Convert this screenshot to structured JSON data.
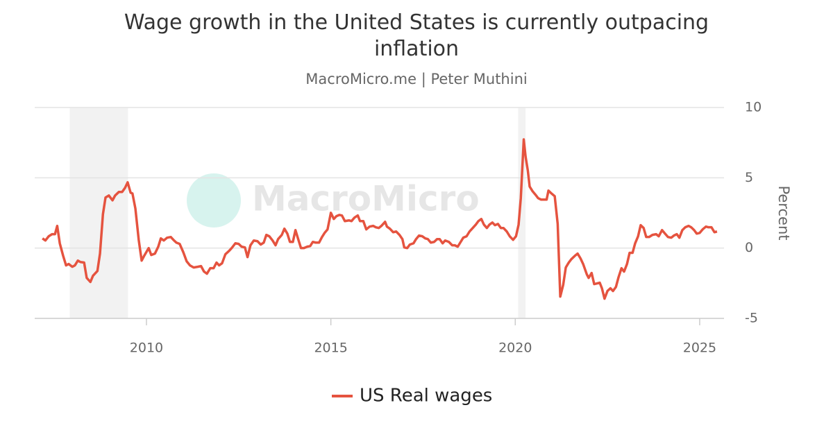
{
  "chart_data": {
    "type": "line",
    "title": "Wage growth in the United States is currently outpacing inflation",
    "subtitle": "MacroMicro.me | Peter Muthini",
    "watermark": "MacroMicro",
    "y_label": "Percent",
    "xlim": [
      2006.97,
      2025.66
    ],
    "xticks": [
      2010,
      2015,
      2020,
      2025
    ],
    "ylim": [
      -5,
      10
    ],
    "yticks": [
      -5,
      0,
      5,
      10
    ],
    "grid": true,
    "recessions": [
      [
        2007.92,
        2009.5
      ],
      [
        2020.08,
        2020.28
      ]
    ],
    "x": [
      2007.18,
      2007.26,
      2007.35,
      2007.44,
      2007.52,
      2007.58,
      2007.65,
      2007.74,
      2007.82,
      2007.89,
      2007.99,
      2008.06,
      2008.14,
      2008.21,
      2008.31,
      2008.38,
      2008.48,
      2008.55,
      2008.67,
      2008.74,
      2008.82,
      2008.89,
      2008.98,
      2009.08,
      2009.15,
      2009.25,
      2009.34,
      2009.42,
      2009.49,
      2009.57,
      2009.62,
      2009.7,
      2009.79,
      2009.87,
      2009.94,
      2010.06,
      2010.13,
      2010.23,
      2010.32,
      2010.39,
      2010.47,
      2010.56,
      2010.66,
      2010.73,
      2010.81,
      2010.9,
      2011.0,
      2011.09,
      2011.18,
      2011.28,
      2011.39,
      2011.48,
      2011.56,
      2011.64,
      2011.73,
      2011.82,
      2011.9,
      2011.97,
      2012.05,
      2012.14,
      2012.24,
      2012.31,
      2012.41,
      2012.5,
      2012.58,
      2012.67,
      2012.74,
      2012.82,
      2012.91,
      2013.01,
      2013.1,
      2013.18,
      2013.25,
      2013.33,
      2013.42,
      2013.5,
      2013.57,
      2013.67,
      2013.74,
      2013.82,
      2013.89,
      2013.97,
      2014.04,
      2014.12,
      2014.19,
      2014.27,
      2014.36,
      2014.44,
      2014.51,
      2014.59,
      2014.68,
      2014.76,
      2014.83,
      2014.91,
      2015.0,
      2015.08,
      2015.15,
      2015.23,
      2015.3,
      2015.38,
      2015.49,
      2015.56,
      2015.64,
      2015.73,
      2015.79,
      2015.88,
      2015.96,
      2016.05,
      2016.15,
      2016.22,
      2016.3,
      2016.37,
      2016.47,
      2016.52,
      2016.6,
      2016.69,
      2016.77,
      2016.86,
      2016.94,
      2016.99,
      2017.07,
      2017.14,
      2017.24,
      2017.31,
      2017.39,
      2017.48,
      2017.56,
      2017.63,
      2017.71,
      2017.8,
      2017.88,
      2017.95,
      2018.03,
      2018.1,
      2018.2,
      2018.29,
      2018.36,
      2018.44,
      2018.52,
      2018.59,
      2018.68,
      2018.76,
      2018.83,
      2018.93,
      2019.0,
      2019.08,
      2019.15,
      2019.23,
      2019.3,
      2019.38,
      2019.45,
      2019.53,
      2019.61,
      2019.68,
      2019.77,
      2019.85,
      2019.94,
      2020.02,
      2020.09,
      2020.15,
      2020.23,
      2020.28,
      2020.34,
      2020.39,
      2020.47,
      2020.55,
      2020.62,
      2020.7,
      2020.77,
      2020.85,
      2020.9,
      2020.98,
      2021.07,
      2021.15,
      2021.22,
      2021.3,
      2021.37,
      2021.45,
      2021.52,
      2021.62,
      2021.69,
      2021.77,
      2021.84,
      2021.94,
      2021.99,
      2022.07,
      2022.14,
      2022.22,
      2022.29,
      2022.35,
      2022.42,
      2022.5,
      2022.58,
      2022.65,
      2022.73,
      2022.8,
      2022.88,
      2022.95,
      2023.03,
      2023.1,
      2023.18,
      2023.25,
      2023.33,
      2023.4,
      2023.48,
      2023.55,
      2023.63,
      2023.72,
      2023.82,
      2023.89,
      2023.98,
      2024.06,
      2024.14,
      2024.23,
      2024.3,
      2024.38,
      2024.45,
      2024.53,
      2024.61,
      2024.7,
      2024.77,
      2024.85,
      2024.92,
      2025.0,
      2025.08,
      2025.17,
      2025.24,
      2025.32,
      2025.4,
      2025.47
    ],
    "series": [
      {
        "name": "US Real wages",
        "color": "#e5533f",
        "values": [
          0.69,
          0.54,
          0.84,
          0.99,
          0.99,
          1.58,
          0.34,
          -0.54,
          -1.23,
          -1.13,
          -1.33,
          -1.23,
          -0.89,
          -0.99,
          -1.03,
          -2.12,
          -2.41,
          -1.97,
          -1.63,
          -0.39,
          2.41,
          3.6,
          3.74,
          3.4,
          3.74,
          3.99,
          3.99,
          4.29,
          4.68,
          3.94,
          3.89,
          2.81,
          0.59,
          -0.89,
          -0.54,
          0,
          -0.49,
          -0.39,
          0.1,
          0.69,
          0.54,
          0.74,
          0.79,
          0.59,
          0.39,
          0.3,
          -0.3,
          -0.94,
          -1.23,
          -1.38,
          -1.33,
          -1.28,
          -1.67,
          -1.82,
          -1.43,
          -1.43,
          -1.03,
          -1.23,
          -1.08,
          -0.44,
          -0.2,
          0,
          0.34,
          0.3,
          0.1,
          0.05,
          -0.64,
          0.2,
          0.54,
          0.49,
          0.25,
          0.39,
          0.94,
          0.84,
          0.54,
          0.2,
          0.64,
          0.94,
          1.38,
          1.03,
          0.44,
          0.44,
          1.28,
          0.59,
          0,
          0,
          0.1,
          0.15,
          0.44,
          0.39,
          0.39,
          0.79,
          1.08,
          1.33,
          2.51,
          2.07,
          2.27,
          2.36,
          2.32,
          1.92,
          1.97,
          1.92,
          2.17,
          2.32,
          1.92,
          1.92,
          1.33,
          1.53,
          1.58,
          1.48,
          1.43,
          1.58,
          1.87,
          1.53,
          1.38,
          1.13,
          1.18,
          0.94,
          0.64,
          0.05,
          0,
          0.25,
          0.34,
          0.64,
          0.89,
          0.84,
          0.69,
          0.64,
          0.39,
          0.44,
          0.64,
          0.64,
          0.34,
          0.54,
          0.44,
          0.2,
          0.2,
          0.1,
          0.44,
          0.74,
          0.84,
          1.18,
          1.38,
          1.67,
          1.92,
          2.07,
          1.67,
          1.43,
          1.67,
          1.82,
          1.63,
          1.72,
          1.43,
          1.43,
          1.18,
          0.84,
          0.59,
          0.84,
          1.67,
          3.55,
          7.73,
          6.5,
          5.52,
          4.38,
          4.04,
          3.79,
          3.55,
          3.45,
          3.45,
          3.45,
          4.09,
          3.89,
          3.69,
          1.72,
          -3.45,
          -2.61,
          -1.38,
          -1.03,
          -0.79,
          -0.54,
          -0.39,
          -0.74,
          -1.13,
          -1.87,
          -2.12,
          -1.77,
          -2.56,
          -2.51,
          -2.46,
          -2.86,
          -3.6,
          -3.05,
          -2.86,
          -3.05,
          -2.76,
          -2.07,
          -1.43,
          -1.67,
          -1.13,
          -0.34,
          -0.34,
          0.34,
          0.84,
          1.63,
          1.43,
          0.79,
          0.79,
          0.94,
          0.99,
          0.84,
          1.28,
          1.03,
          0.79,
          0.74,
          0.89,
          0.99,
          0.74,
          1.28,
          1.48,
          1.58,
          1.48,
          1.28,
          1.03,
          1.08,
          1.33,
          1.53,
          1.48,
          1.48,
          1.13,
          1.18
        ]
      }
    ]
  }
}
